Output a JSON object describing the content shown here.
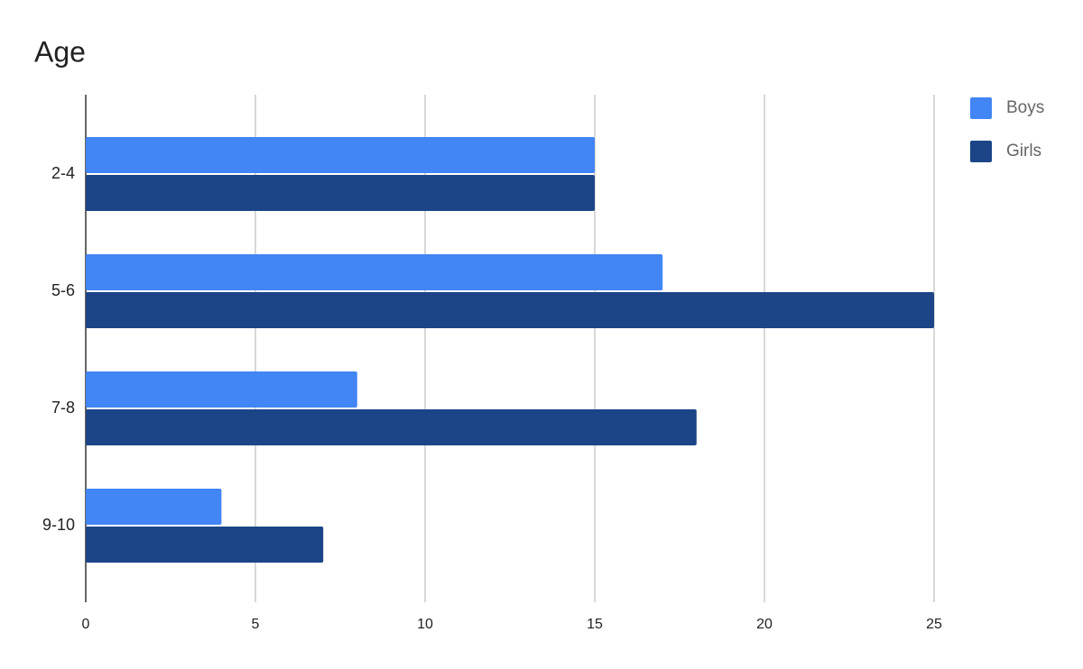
{
  "chart_data": {
    "type": "bar",
    "orientation": "horizontal",
    "title": "Age",
    "categories": [
      "2-4",
      "5-6",
      "7-8",
      "9-10"
    ],
    "series": [
      {
        "name": "Boys",
        "color": "#4285f4",
        "values": [
          15,
          17,
          8,
          4
        ]
      },
      {
        "name": "Girls",
        "color": "#1c4587",
        "values": [
          15,
          25,
          18,
          7
        ]
      }
    ],
    "xlim": [
      0,
      25
    ],
    "xticks": [
      0,
      5,
      10,
      15,
      20,
      25
    ],
    "grid": true,
    "legend": "right"
  }
}
